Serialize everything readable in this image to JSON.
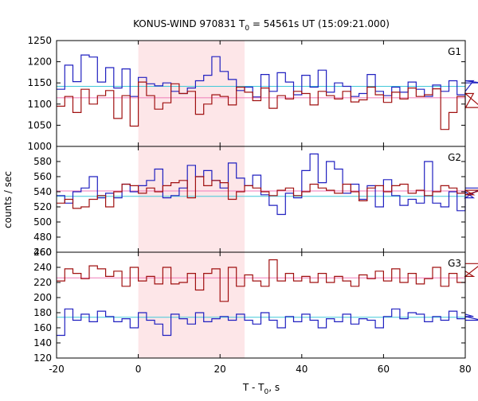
{
  "chart_data": {
    "type": "line",
    "title_main": "KONUS-WIND 970831 T",
    "title_sub": "0",
    "title_rest": " = 54561s UT (15:09:21.000)",
    "xlabel_main": "T - T",
    "xlabel_sub": "0",
    "xlabel_rest": ", s",
    "ylabel": "counts / sec",
    "xlim": [
      -20,
      80
    ],
    "xticks": [
      "-20",
      "0",
      "20",
      "40",
      "60",
      "80"
    ],
    "highlight_interval": [
      0,
      26
    ],
    "bin_width": 2,
    "colors": {
      "highlight": "#fde6e8",
      "red_series": "#a01010",
      "blue_series": "#2020c0",
      "red_background": "#f07ab8",
      "blue_background": "#40c8d8"
    },
    "panels": [
      {
        "name": "G1",
        "ylim": [
          1000,
          1250
        ],
        "yticks": [
          "1000",
          "1050",
          "1100",
          "1150",
          "1200",
          "1250"
        ],
        "series": [
          {
            "color": "blue",
            "values": [
              1135,
              1192,
              1153,
              1216,
              1211,
              1152,
              1186,
              1138,
              1183,
              1118,
              1163,
              1148,
              1143,
              1150,
              1130,
              1125,
              1138,
              1155,
              1168,
              1212,
              1177,
              1158,
              1132,
              1140,
              1117,
              1170,
              1130,
              1174,
              1152,
              1122,
              1168,
              1140,
              1180,
              1128,
              1150,
              1142,
              1118,
              1125,
              1170,
              1130,
              1120,
              1140,
              1128,
              1152,
              1135,
              1118,
              1145,
              1130,
              1155,
              1122,
              1130,
              1155,
              1150
            ]
          },
          {
            "color": "red",
            "values": [
              1095,
              1118,
              1080,
              1135,
              1100,
              1120,
              1132,
              1066,
              1120,
              1048,
              1152,
              1120,
              1088,
              1103,
              1148,
              1125,
              1130,
              1076,
              1100,
              1122,
              1118,
              1098,
              1140,
              1128,
              1108,
              1138,
              1090,
              1120,
              1112,
              1130,
              1125,
              1098,
              1130,
              1120,
              1112,
              1130,
              1105,
              1110,
              1140,
              1122,
              1104,
              1128,
              1112,
              1138,
              1118,
              1122,
              1136,
              1040,
              1080,
              1118,
              1090,
              1125,
              1092
            ]
          }
        ],
        "background": [
          {
            "color": "blue",
            "level": 1142
          },
          {
            "color": "red",
            "level": 1115
          }
        ]
      },
      {
        "name": "G2",
        "ylim": [
          460,
          600
        ],
        "yticks": [
          "460",
          "480",
          "500",
          "520",
          "540",
          "560",
          "580"
        ],
        "series": [
          {
            "color": "blue",
            "values": [
              535,
              525,
              540,
              545,
              560,
              532,
              538,
              532,
              550,
              540,
              548,
              555,
              570,
              532,
              535,
              545,
              575,
              560,
              568,
              555,
              545,
              578,
              558,
              548,
              562,
              536,
              522,
              510,
              538,
              532,
              568,
              590,
              552,
              580,
              570,
              538,
              550,
              530,
              548,
              520,
              556,
              535,
              522,
              530,
              525,
              580,
              525,
              520,
              540,
              515,
              540,
              532,
              545
            ]
          },
          {
            "color": "red",
            "values": [
              525,
              530,
              518,
              520,
              530,
              535,
              520,
              540,
              550,
              548,
              538,
              545,
              540,
              548,
              552,
              555,
              532,
              560,
              548,
              555,
              552,
              530,
              540,
              548,
              545,
              540,
              535,
              542,
              545,
              535,
              540,
              550,
              545,
              542,
              538,
              550,
              540,
              528,
              545,
              548,
              540,
              548,
              550,
              538,
              542,
              535,
              540,
              548,
              545,
              538,
              542,
              536,
              542
            ]
          }
        ],
        "background": [
          {
            "color": "red",
            "level": 541
          },
          {
            "color": "blue",
            "level": 534
          }
        ]
      },
      {
        "name": "G3",
        "ylim": [
          120,
          260
        ],
        "yticks": [
          "120",
          "140",
          "160",
          "180",
          "200",
          "220",
          "240",
          "260"
        ],
        "series": [
          {
            "color": "red",
            "values": [
              222,
              238,
              232,
              225,
              242,
              238,
              228,
              235,
              215,
              240,
              222,
              228,
              218,
              240,
              218,
              220,
              232,
              210,
              232,
              238,
              195,
              240,
              215,
              230,
              222,
              215,
              250,
              222,
              232,
              222,
              228,
              220,
              232,
              220,
              228,
              222,
              215,
              230,
              225,
              235,
              222,
              238,
              220,
              232,
              218,
              225,
              240,
              215,
              232,
              220,
              235,
              228,
              245
            ]
          },
          {
            "color": "blue",
            "values": [
              150,
              185,
              170,
              178,
              168,
              182,
              175,
              168,
              172,
              160,
              180,
              170,
              165,
              150,
              178,
              172,
              165,
              180,
              168,
              172,
              175,
              170,
              178,
              170,
              165,
              180,
              170,
              160,
              175,
              168,
              178,
              170,
              160,
              172,
              168,
              178,
              165,
              172,
              170,
              160,
              175,
              185,
              172,
              180,
              178,
              168,
              175,
              170,
              182,
              172,
              178,
              175,
              170
            ]
          }
        ],
        "background": [
          {
            "color": "red",
            "level": 226
          },
          {
            "color": "blue",
            "level": 174
          }
        ]
      }
    ]
  }
}
